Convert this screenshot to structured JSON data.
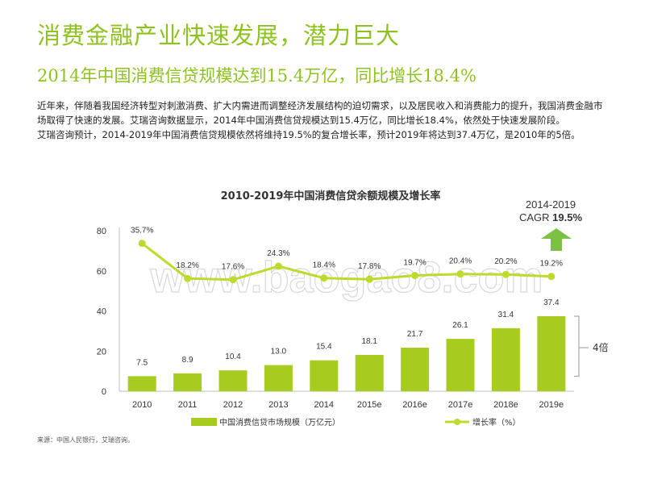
{
  "header": {
    "title": "消费金融产业快速发展，潜力巨大",
    "subtitle": "2014年中国消费信贷规模达到15.4万亿，同比增长18.4%"
  },
  "body": {
    "paragraph1": "近年来，伴随着我国经济转型对刺激消费、扩大内需进而调整经济发展结构的迫切需求，以及居民收入和消费能力的提升，我国消费金融市场取得了快速的发展。艾瑞咨询数据显示，2014年中国消费信贷规模达到15.4万亿，同比增长18.4%，依然处于快速发展阶段。",
    "paragraph2": "艾瑞咨询预计，2014-2019年中国消费信贷规模依然将维持19.5%的复合增长率，预计2019年将达到37.4万亿，是2010年的5倍。"
  },
  "annotations": {
    "cagr_period": "2014-2019",
    "cagr_label": "CAGR",
    "cagr_value": "19.5%",
    "multiple_label": "4倍"
  },
  "watermark": "www.baogao8.com",
  "source": "来源：中国人民银行，艾瑞咨询。",
  "colors": {
    "accent": "#8dc21f",
    "bar": "#a5cc1e",
    "line": "#bfd92c",
    "arrow": "#7cc242",
    "text": "#333333"
  },
  "chart_data": {
    "type": "bar",
    "title": "2010-2019年中国消费信贷余额规模及增长率",
    "categories": [
      "2010",
      "2011",
      "2012",
      "2013",
      "2014",
      "2015e",
      "2016e",
      "2017e",
      "2018e",
      "2019e"
    ],
    "ylim": [
      0,
      80
    ],
    "yticks": [
      0,
      20,
      40,
      60,
      80
    ],
    "grid": false,
    "legend_position": "bottom",
    "series": [
      {
        "name": "中国消费信贷市场规模（万亿元）",
        "type": "bar",
        "values": [
          7.5,
          8.9,
          10.4,
          13.0,
          15.4,
          18.1,
          21.7,
          26.1,
          31.4,
          37.4
        ],
        "labels": [
          "7.5",
          "8.9",
          "10.4",
          "13.0",
          "15.4",
          "18.1",
          "21.7",
          "26.1",
          "31.4",
          "37.4"
        ]
      },
      {
        "name": "增长率（%）",
        "type": "line",
        "values": [
          35.7,
          18.2,
          17.6,
          24.3,
          18.4,
          17.8,
          19.7,
          20.4,
          20.2,
          19.2
        ],
        "labels": [
          "35.7%",
          "18.2%",
          "17.6%",
          "24.3%",
          "18.4%",
          "17.8%",
          "19.7%",
          "20.4%",
          "20.2%",
          "19.2%"
        ]
      }
    ]
  }
}
